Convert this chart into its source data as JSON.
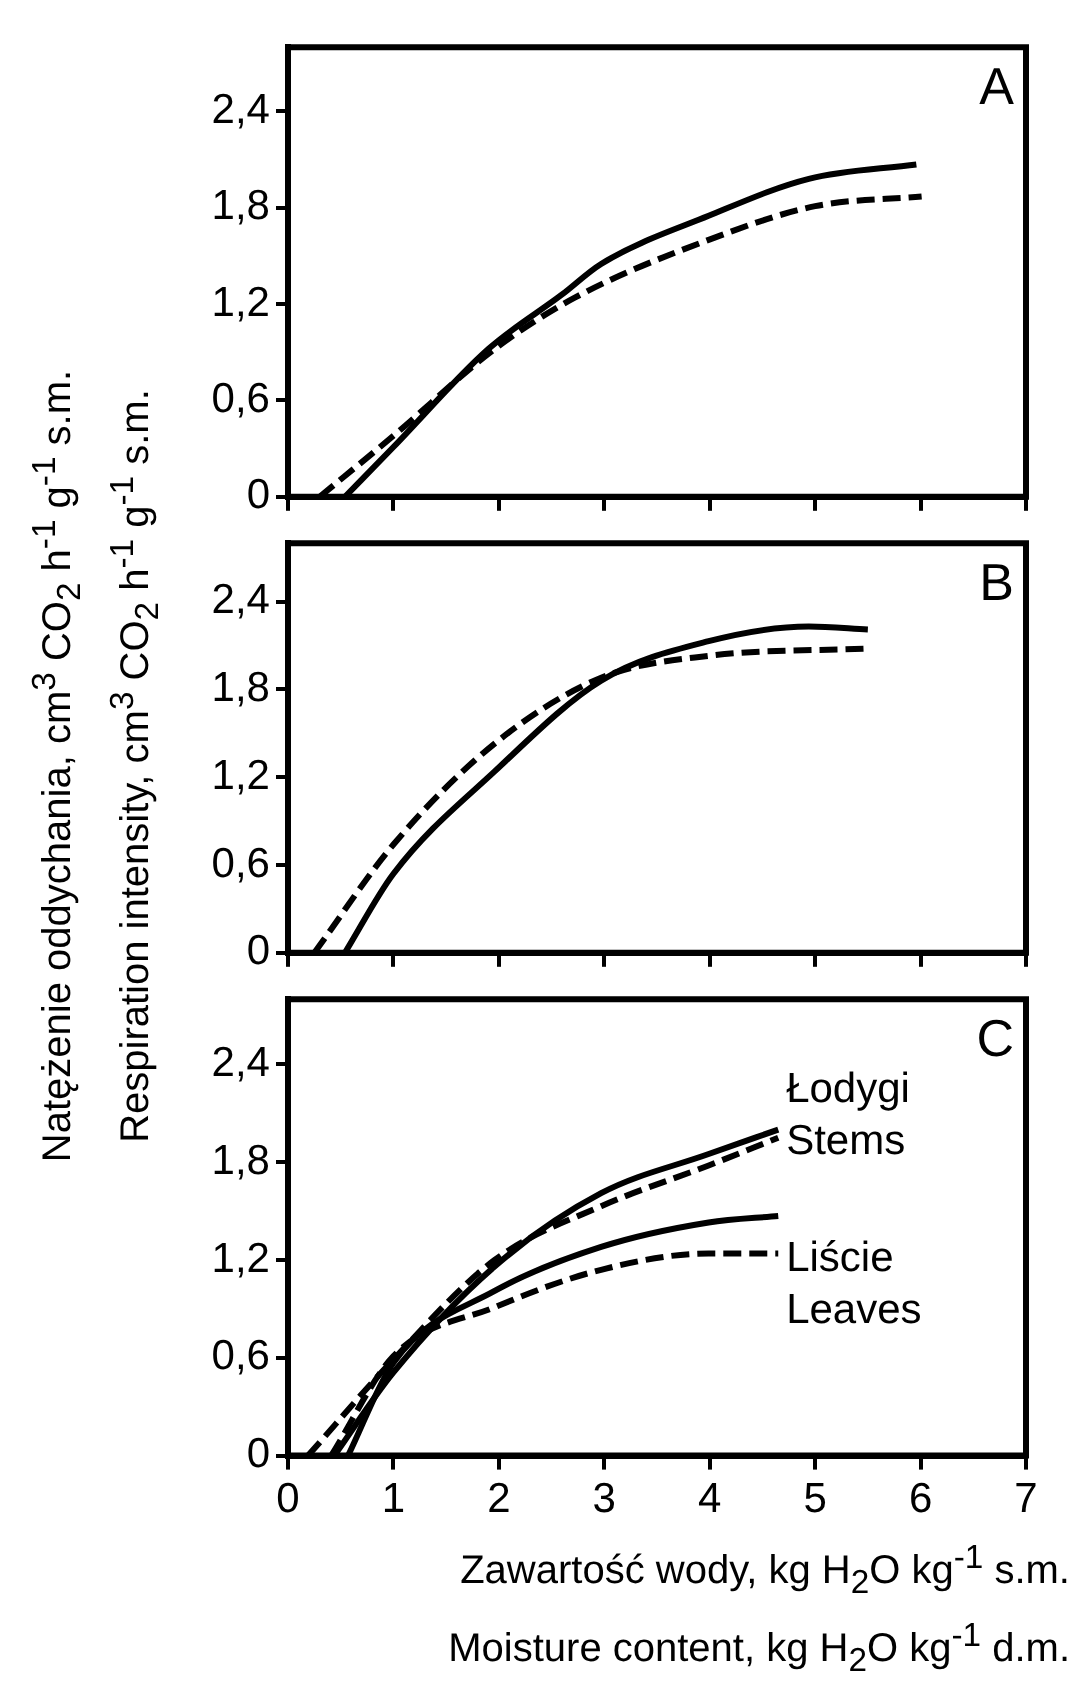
{
  "chart_data": [
    {
      "type": "line",
      "title": "A",
      "xlim": [
        0,
        7
      ],
      "xticks": [
        0,
        1,
        2,
        3,
        4,
        5,
        6,
        7
      ],
      "ylim": [
        0,
        2.8
      ],
      "yticks": [
        {
          "value": 0,
          "label": "0"
        },
        {
          "value": 0.6,
          "label": "0,6"
        },
        {
          "value": 1.2,
          "label": "1,2"
        },
        {
          "value": 1.8,
          "label": "1,8"
        },
        {
          "value": 2.4,
          "label": "2,4"
        }
      ],
      "tick_labels": "y",
      "grid": false,
      "legend": false,
      "marker": "none",
      "series": [
        {
          "color": "#000000",
          "line_style": "solid",
          "x": [
            0.54,
            1,
            1.9,
            2.6,
            2.97,
            3.99,
            4.94,
            5.96
          ],
          "values": [
            0,
            0.31,
            0.92,
            1.26,
            1.45,
            1.75,
            1.98,
            2.07
          ]
        },
        {
          "color": "#000000",
          "line_style": "dashed",
          "x": [
            0.3,
            1,
            1.96,
            2.72,
            3.99,
            5,
            6.01
          ],
          "values": [
            0,
            0.38,
            0.92,
            1.24,
            1.6,
            1.81,
            1.87
          ]
        }
      ]
    },
    {
      "type": "line",
      "title": "B",
      "ylabel": "Natężenie oddychania, cm$^{3}$ CO$_{2}$ h$^{-1}$ g$^{-1}$ s.m.\nRespiration intensity, cm$^{3}$ CO$_{2}$ h$^{-1}$ g$^{-1}$ s.m.",
      "xlim": [
        0,
        7
      ],
      "xticks": [
        0,
        1,
        2,
        3,
        4,
        5,
        6,
        7
      ],
      "ylim": [
        0,
        2.8
      ],
      "yticks": [
        {
          "value": 0,
          "label": "0"
        },
        {
          "value": 0.6,
          "label": "0,6"
        },
        {
          "value": 1.2,
          "label": "1,2"
        },
        {
          "value": 1.8,
          "label": "1,8"
        },
        {
          "value": 2.4,
          "label": "2,4"
        }
      ],
      "tick_labels": "y",
      "grid": false,
      "legend": false,
      "marker": "none",
      "series": [
        {
          "color": "#000000",
          "line_style": "solid",
          "x": [
            0.54,
            1,
            1.96,
            2.97,
            3.99,
            4.94,
            5.5
          ],
          "values": [
            0,
            0.54,
            1.24,
            1.86,
            2.13,
            2.23,
            2.21
          ]
        },
        {
          "color": "#000000",
          "line_style": "dashed",
          "x": [
            0.25,
            1,
            1.96,
            2.97,
            3.99,
            5.5
          ],
          "values": [
            0,
            0.74,
            1.43,
            1.88,
            2.03,
            2.08
          ]
        }
      ]
    },
    {
      "type": "line",
      "title": "C",
      "xlabel": "Zawartość wody, kg H$_{2}$O kg$^{-1}$ s.m.\nMoisture content, kg H$_{2}$O kg$^{-1}$ d.m.",
      "xlim": [
        0,
        7
      ],
      "xticks": [
        0,
        1,
        2,
        3,
        4,
        5,
        6,
        7
      ],
      "ylim": [
        0,
        2.8
      ],
      "yticks": [
        {
          "value": 0,
          "label": "0"
        },
        {
          "value": 0.6,
          "label": "0,6"
        },
        {
          "value": 1.2,
          "label": "1,2"
        },
        {
          "value": 1.8,
          "label": "1,8"
        },
        {
          "value": 2.4,
          "label": "2,4"
        }
      ],
      "grid": false,
      "legend": false,
      "marker": "none",
      "annotations": [
        "Łodygi\nStems",
        "Liście\nLeaves"
      ],
      "series": [
        {
          "color": "#000000",
          "line_style": "solid",
          "x": [
            0.44,
            1,
            1.96,
            2.97,
            3.99,
            4.65
          ],
          "values": [
            0,
            0.51,
            1.16,
            1.61,
            1.85,
            2.0
          ]
        },
        {
          "color": "#000000",
          "line_style": "dashed",
          "x": [
            0.19,
            1,
            1.96,
            2.97,
            3.99,
            4.65
          ],
          "values": [
            0,
            0.59,
            1.2,
            1.53,
            1.78,
            1.95
          ]
        },
        {
          "color": "#000000",
          "line_style": "solid",
          "x": [
            0.57,
            1,
            1.96,
            2.97,
            3.99,
            4.65
          ],
          "values": [
            0,
            0.57,
            1.01,
            1.28,
            1.43,
            1.47
          ]
        },
        {
          "color": "#000000",
          "line_style": "dashed",
          "x": [
            0.41,
            1,
            1.96,
            2.97,
            3.99,
            4.65
          ],
          "values": [
            0,
            0.61,
            0.91,
            1.14,
            1.24,
            1.24
          ]
        }
      ]
    }
  ]
}
